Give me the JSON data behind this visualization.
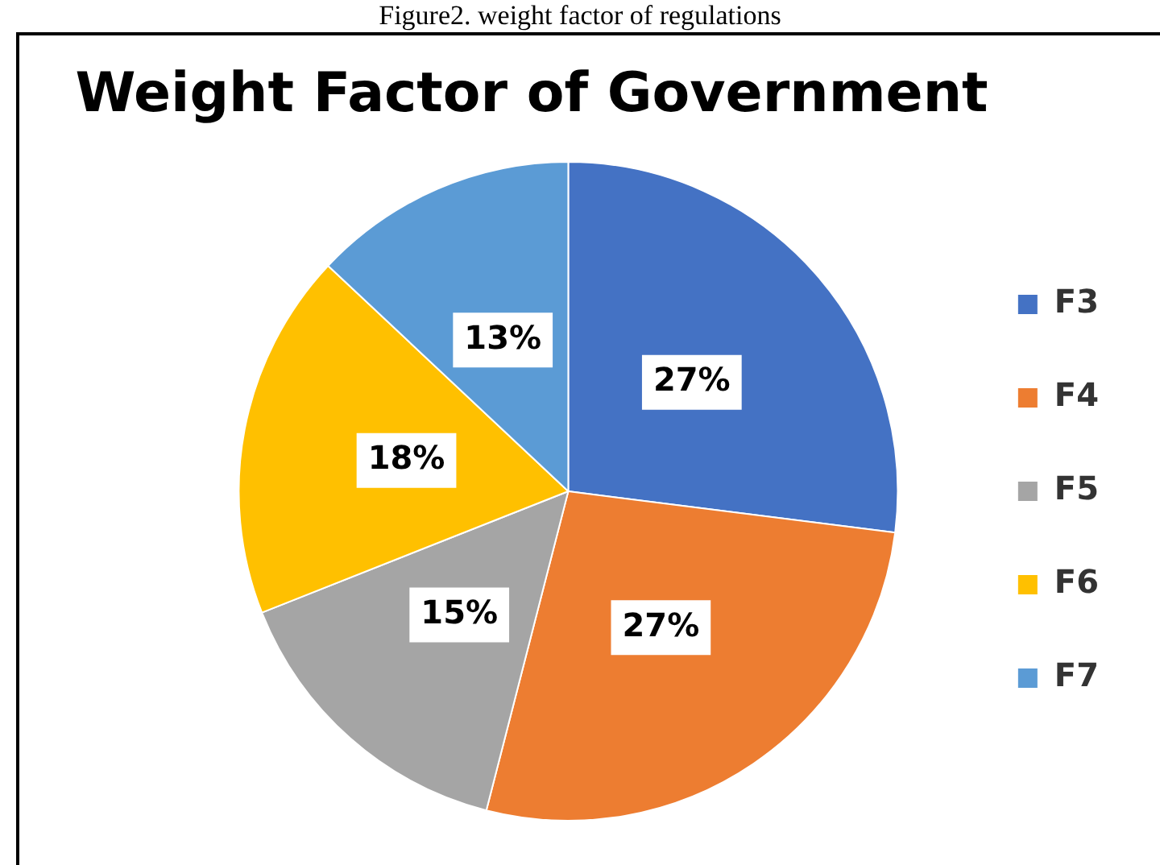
{
  "chart_data": {
    "type": "pie",
    "title": "Weight Factor of Government",
    "annotations": [
      "Figure2. weight factor of regulations"
    ],
    "categories": [
      "F3",
      "F4",
      "F5",
      "F6",
      "F7"
    ],
    "values": [
      27,
      27,
      15,
      18,
      13
    ],
    "value_labels": [
      "27%",
      "27%",
      "15%",
      "18%",
      "13%"
    ],
    "colors": [
      "#4472c4",
      "#ed7d31",
      "#a5a5a5",
      "#ffc000",
      "#5b9bd5"
    ],
    "legend": "right"
  }
}
